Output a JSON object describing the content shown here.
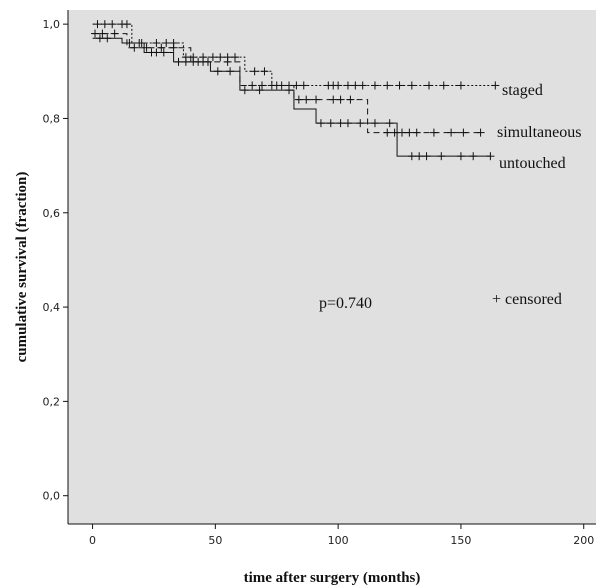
{
  "chart_data": {
    "type": "line",
    "title": "",
    "xlabel": "time after surgery (months)",
    "ylabel": "cumulative survival (fraction)",
    "xlim": [
      -10,
      205
    ],
    "ylim": [
      -0.06,
      1.03
    ],
    "x_ticks": [
      0,
      50,
      100,
      150,
      200
    ],
    "x_tick_labels": [
      "0",
      "50",
      "100",
      "150",
      "200"
    ],
    "y_ticks": [
      0.0,
      0.2,
      0.4,
      0.6,
      0.8,
      1.0
    ],
    "y_tick_labels": [
      "0,0",
      "0,2",
      "0,4",
      "0,6",
      "0,8",
      "1,0"
    ],
    "grid": false,
    "background": "#e0e0e0",
    "annotations": {
      "pvalue": "p=0.740",
      "censored_note": "+ censored"
    },
    "series": [
      {
        "name": "staged",
        "style": "dotted",
        "steps": [
          [
            0,
            1.0
          ],
          [
            16,
            0.96
          ],
          [
            37,
            0.93
          ],
          [
            62,
            0.9
          ],
          [
            73,
            0.87
          ],
          [
            164,
            0.87
          ]
        ],
        "censored": [
          2,
          5,
          8,
          12,
          14,
          20,
          26,
          30,
          33,
          38,
          41,
          45,
          49,
          52,
          55,
          58,
          66,
          70,
          73,
          77,
          80,
          83,
          86,
          96,
          98,
          100,
          104,
          107,
          110,
          115,
          120,
          125,
          130,
          137,
          143,
          150,
          164
        ]
      },
      {
        "name": "simultaneous",
        "style": "dashed",
        "steps": [
          [
            0,
            0.98
          ],
          [
            14,
            0.95
          ],
          [
            40,
            0.92
          ],
          [
            60,
            0.87
          ],
          [
            82,
            0.84
          ],
          [
            112,
            0.77
          ],
          [
            158,
            0.77
          ]
        ],
        "censored": [
          1,
          4,
          9,
          17,
          22,
          28,
          33,
          43,
          47,
          55,
          65,
          69,
          75,
          84,
          87,
          91,
          98,
          101,
          105,
          120,
          123,
          126,
          129,
          132,
          139,
          146,
          151,
          158
        ]
      },
      {
        "name": "untouched",
        "style": "solid",
        "steps": [
          [
            0,
            0.97
          ],
          [
            12,
            0.96
          ],
          [
            21,
            0.94
          ],
          [
            33,
            0.92
          ],
          [
            48,
            0.9
          ],
          [
            60,
            0.86
          ],
          [
            82,
            0.82
          ],
          [
            91,
            0.79
          ],
          [
            124,
            0.72
          ],
          [
            162,
            0.72
          ]
        ],
        "censored": [
          3,
          6,
          15,
          19,
          24,
          26,
          29,
          35,
          38,
          41,
          45,
          51,
          56,
          62,
          68,
          80,
          93,
          97,
          101,
          104,
          109,
          115,
          121,
          130,
          133,
          136,
          142,
          150,
          155,
          162
        ]
      }
    ]
  }
}
